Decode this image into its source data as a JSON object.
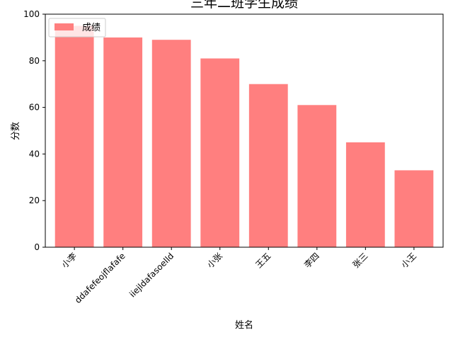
{
  "chart_data": {
    "type": "bar",
    "title": "三年二班学生成绩",
    "xlabel": "姓名",
    "ylabel": "分数",
    "categories": [
      "小李",
      "ddafefeojflafafe",
      "iiejldafasoelld",
      "小张",
      "王五",
      "李四",
      "张三",
      "小王"
    ],
    "series": [
      {
        "name": "成绩",
        "values": [
          95,
          90,
          89,
          81,
          70,
          61,
          45,
          33
        ]
      }
    ],
    "ylim": [
      0,
      100
    ],
    "yticks": [
      0,
      20,
      40,
      60,
      80,
      100
    ],
    "legend_position": "upper-left",
    "grid": false,
    "bar_color": "#ff7f7f"
  }
}
